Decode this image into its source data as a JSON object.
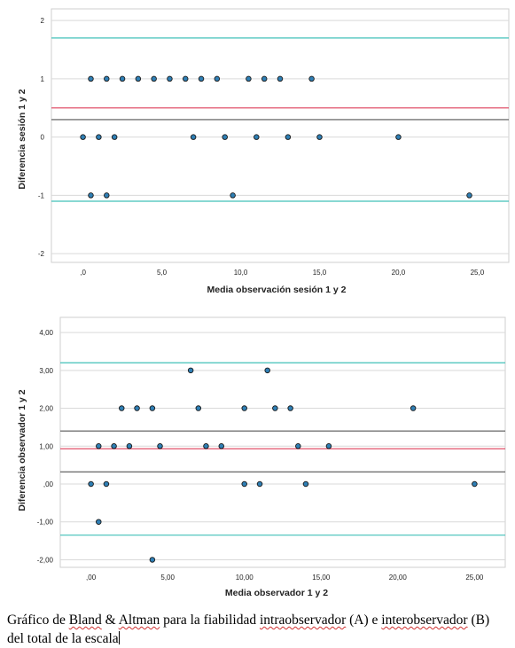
{
  "chart_data": [
    {
      "type": "scatter",
      "xlabel": "Media observación sesión 1 y 2",
      "ylabel": "Diferencia sesión 1 y 2",
      "xlim": [
        -2,
        27
      ],
      "ylim": [
        -2.15,
        2.2
      ],
      "xticks": [
        0,
        5,
        10,
        15,
        20,
        25
      ],
      "xtick_labels": [
        ",0",
        "5,0",
        "10,0",
        "15,0",
        "20,0",
        "25,0"
      ],
      "yticks": [
        2,
        1,
        0,
        -1,
        -2
      ],
      "ytick_labels": [
        "2",
        "1",
        "0",
        "-1",
        "-2"
      ],
      "grid": true,
      "reference_lines": [
        {
          "y": 1.7,
          "color": "#40c0b8"
        },
        {
          "y": 0.5,
          "color": "#e0506a"
        },
        {
          "y": 0.3,
          "color": "#555555"
        },
        {
          "y": -1.1,
          "color": "#40c0b8"
        }
      ],
      "points": [
        {
          "x": 0.5,
          "y": 1
        },
        {
          "x": 1.5,
          "y": 1
        },
        {
          "x": 2.5,
          "y": 1
        },
        {
          "x": 3.5,
          "y": 1
        },
        {
          "x": 4.5,
          "y": 1
        },
        {
          "x": 5.5,
          "y": 1
        },
        {
          "x": 6.5,
          "y": 1
        },
        {
          "x": 7.5,
          "y": 1
        },
        {
          "x": 8.5,
          "y": 1
        },
        {
          "x": 10.5,
          "y": 1
        },
        {
          "x": 11.5,
          "y": 1
        },
        {
          "x": 12.5,
          "y": 1
        },
        {
          "x": 14.5,
          "y": 1
        },
        {
          "x": 0,
          "y": 0
        },
        {
          "x": 1,
          "y": 0
        },
        {
          "x": 2,
          "y": 0
        },
        {
          "x": 7,
          "y": 0
        },
        {
          "x": 9,
          "y": 0
        },
        {
          "x": 11,
          "y": 0
        },
        {
          "x": 13,
          "y": 0
        },
        {
          "x": 15,
          "y": 0
        },
        {
          "x": 20,
          "y": 0
        },
        {
          "x": 0.5,
          "y": -1
        },
        {
          "x": 1.5,
          "y": -1
        },
        {
          "x": 9.5,
          "y": -1
        },
        {
          "x": 24.5,
          "y": -1
        }
      ]
    },
    {
      "type": "scatter",
      "xlabel": "Media observador 1 y 2",
      "ylabel": "Diferencia observador 1 y 2",
      "xlim": [
        -2,
        27
      ],
      "ylim": [
        -2.2,
        4.4
      ],
      "xticks": [
        0,
        5,
        10,
        15,
        20,
        25
      ],
      "xtick_labels": [
        ",00",
        "5,00",
        "10,00",
        "15,00",
        "20,00",
        "25,00"
      ],
      "yticks": [
        4,
        3,
        2,
        1,
        0,
        -1,
        -2
      ],
      "ytick_labels": [
        "4,00",
        "3,00",
        "2,00",
        "1,00",
        ",00",
        "-1,00",
        "-2,00"
      ],
      "grid": true,
      "reference_lines": [
        {
          "y": 3.2,
          "color": "#40c0b8"
        },
        {
          "y": 1.4,
          "color": "#555555"
        },
        {
          "y": 0.93,
          "color": "#e0506a"
        },
        {
          "y": 0.32,
          "color": "#555555"
        },
        {
          "y": -1.35,
          "color": "#40c0b8"
        }
      ],
      "points": [
        {
          "x": 6.5,
          "y": 3
        },
        {
          "x": 11.5,
          "y": 3
        },
        {
          "x": 2,
          "y": 2
        },
        {
          "x": 3,
          "y": 2
        },
        {
          "x": 4,
          "y": 2
        },
        {
          "x": 7,
          "y": 2
        },
        {
          "x": 10,
          "y": 2
        },
        {
          "x": 12,
          "y": 2
        },
        {
          "x": 13,
          "y": 2
        },
        {
          "x": 21,
          "y": 2
        },
        {
          "x": 0.5,
          "y": 1
        },
        {
          "x": 1.5,
          "y": 1
        },
        {
          "x": 2.5,
          "y": 1
        },
        {
          "x": 4.5,
          "y": 1
        },
        {
          "x": 7.5,
          "y": 1
        },
        {
          "x": 8.5,
          "y": 1
        },
        {
          "x": 13.5,
          "y": 1
        },
        {
          "x": 15.5,
          "y": 1
        },
        {
          "x": 0,
          "y": 0
        },
        {
          "x": 1,
          "y": 0
        },
        {
          "x": 10,
          "y": 0
        },
        {
          "x": 11,
          "y": 0
        },
        {
          "x": 14,
          "y": 0
        },
        {
          "x": 25,
          "y": 0
        },
        {
          "x": 0.5,
          "y": -1
        },
        {
          "x": 4,
          "y": -2
        }
      ]
    }
  ],
  "caption": {
    "part1": "Gráfico de ",
    "bland": "Bland",
    "amp": " & ",
    "altman": "Altman",
    "part2": " para la fiabilidad ",
    "intra": "intraobservador",
    "part3": " (A) e ",
    "inter": "interobservador",
    "part4": " (B)",
    "line2": "del total de la escala"
  },
  "colors": {
    "point_fill": "#2f7fb5",
    "point_stroke": "#1a1a1a",
    "grid": "#d9d9d9",
    "frame": "#cfcfcf"
  }
}
